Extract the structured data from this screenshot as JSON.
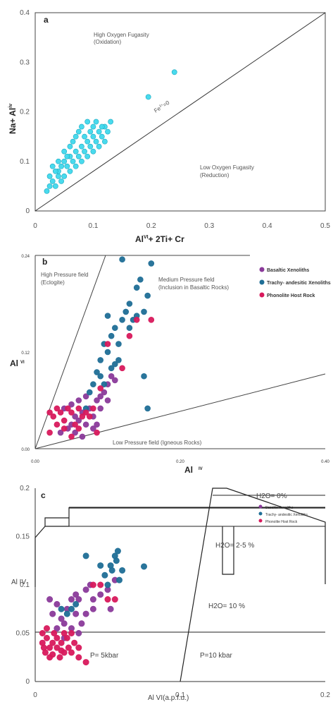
{
  "chart_data": [
    {
      "type": "scatter",
      "panel_label": "a",
      "xlabel": "Al",
      "xlabel_sup": "VI",
      "xlabel_rest": "+ 2Ti+ Cr",
      "ylabel": "Na+ Al",
      "ylabel_sup": "iv",
      "xlim": [
        0,
        0.5
      ],
      "ylim": [
        0,
        0.4
      ],
      "x_ticks": [
        "0",
        "0.1",
        "0.2",
        "0.3",
        "0.4",
        "0.5"
      ],
      "y_ticks": [
        "0",
        "0.1",
        "0.2",
        "0.3",
        "0.4"
      ],
      "line_label": "Fe",
      "line_label_sup": "3+",
      "line_label_rest": "=0",
      "annotations": [
        {
          "line1": "High Oxygen Fugasity",
          "line2": "(Oxidation)"
        },
        {
          "line1": "Low Oxygen Fugasity",
          "line2": "(Reduction)"
        }
      ],
      "color": "#3fd8ec",
      "series": [
        {
          "values": [
            [
              0.02,
              0.04
            ],
            [
              0.025,
              0.05
            ],
            [
              0.03,
              0.06
            ],
            [
              0.035,
              0.05
            ],
            [
              0.04,
              0.07
            ],
            [
              0.045,
              0.06
            ],
            [
              0.03,
              0.09
            ],
            [
              0.04,
              0.08
            ],
            [
              0.05,
              0.1
            ],
            [
              0.05,
              0.07
            ],
            [
              0.055,
              0.09
            ],
            [
              0.06,
              0.11
            ],
            [
              0.06,
              0.08
            ],
            [
              0.065,
              0.1
            ],
            [
              0.07,
              0.12
            ],
            [
              0.07,
              0.09
            ],
            [
              0.075,
              0.11
            ],
            [
              0.08,
              0.13
            ],
            [
              0.08,
              0.1
            ],
            [
              0.085,
              0.12
            ],
            [
              0.09,
              0.14
            ],
            [
              0.09,
              0.11
            ],
            [
              0.095,
              0.13
            ],
            [
              0.1,
              0.15
            ],
            [
              0.1,
              0.12
            ],
            [
              0.105,
              0.14
            ],
            [
              0.11,
              0.16
            ],
            [
              0.11,
              0.13
            ],
            [
              0.115,
              0.15
            ],
            [
              0.12,
              0.17
            ],
            [
              0.12,
              0.14
            ],
            [
              0.125,
              0.16
            ],
            [
              0.13,
              0.18
            ],
            [
              0.06,
              0.13
            ],
            [
              0.07,
              0.15
            ],
            [
              0.08,
              0.17
            ],
            [
              0.09,
              0.18
            ],
            [
              0.1,
              0.17
            ],
            [
              0.05,
              0.12
            ],
            [
              0.04,
              0.1
            ],
            [
              0.065,
              0.14
            ],
            [
              0.075,
              0.16
            ],
            [
              0.085,
              0.15
            ],
            [
              0.095,
              0.16
            ],
            [
              0.105,
              0.18
            ],
            [
              0.035,
              0.08
            ],
            [
              0.055,
              0.11
            ],
            [
              0.025,
              0.07
            ],
            [
              0.045,
              0.09
            ],
            [
              0.115,
              0.17
            ],
            [
              0.195,
              0.23
            ],
            [
              0.24,
              0.28
            ]
          ]
        }
      ]
    },
    {
      "type": "scatter",
      "panel_label": "b",
      "xlabel": "Al",
      "xlabel_sup": "IV",
      "ylabel": "Al",
      "ylabel_sup": "VI",
      "xlim": [
        0,
        0.4
      ],
      "ylim": [
        0,
        0.24
      ],
      "x_ticks": [
        "0.00",
        "0.20",
        "0.40"
      ],
      "y_ticks": [
        "0.00",
        "0.12",
        "0.24"
      ],
      "annotations": [
        {
          "line1": "High Pressure field",
          "line2": "(Eclogite)"
        },
        {
          "line1": "Medium Pressure field",
          "line2": "(Inclusion in Basaltic Rocks)"
        },
        {
          "line1": "Low Pressure field (Igneous Rocks)",
          "line2": ""
        }
      ],
      "legend_position": "top-right",
      "series": [
        {
          "name": "Basaltic Xenoliths",
          "color": "#8a3a9a",
          "values": [
            [
              0.035,
              0.02
            ],
            [
              0.045,
              0.025
            ],
            [
              0.05,
              0.03
            ],
            [
              0.055,
              0.02
            ],
            [
              0.06,
              0.035
            ],
            [
              0.065,
              0.045
            ],
            [
              0.07,
              0.03
            ],
            [
              0.075,
              0.05
            ],
            [
              0.08,
              0.04
            ],
            [
              0.085,
              0.06
            ],
            [
              0.09,
              0.05
            ],
            [
              0.095,
              0.07
            ],
            [
              0.1,
              0.08
            ],
            [
              0.105,
              0.09
            ],
            [
              0.11,
              0.085
            ],
            [
              0.085,
              0.03
            ],
            [
              0.04,
              0.05
            ],
            [
              0.05,
              0.055
            ],
            [
              0.06,
              0.06
            ],
            [
              0.07,
              0.065
            ],
            [
              0.08,
              0.025
            ],
            [
              0.065,
              0.015
            ],
            [
              0.055,
              0.04
            ],
            [
              0.09,
              0.065
            ],
            [
              0.1,
              0.06
            ]
          ]
        },
        {
          "name": "Trachy- andesitic Xenoliths",
          "color": "#1f6e96",
          "values": [
            [
              0.07,
              0.05
            ],
            [
              0.075,
              0.07
            ],
            [
              0.08,
              0.08
            ],
            [
              0.085,
              0.095
            ],
            [
              0.09,
              0.11
            ],
            [
              0.095,
              0.13
            ],
            [
              0.1,
              0.12
            ],
            [
              0.105,
              0.14
            ],
            [
              0.11,
              0.15
            ],
            [
              0.115,
              0.13
            ],
            [
              0.12,
              0.16
            ],
            [
              0.125,
              0.17
            ],
            [
              0.13,
              0.18
            ],
            [
              0.135,
              0.16
            ],
            [
              0.14,
              0.2
            ],
            [
              0.145,
              0.21
            ],
            [
              0.15,
              0.17
            ],
            [
              0.155,
              0.19
            ],
            [
              0.16,
              0.23
            ],
            [
              0.12,
              0.235
            ],
            [
              0.1,
              0.165
            ],
            [
              0.11,
              0.105
            ],
            [
              0.105,
              0.1
            ],
            [
              0.095,
              0.08
            ],
            [
              0.09,
              0.09
            ],
            [
              0.15,
              0.09
            ],
            [
              0.155,
              0.05
            ],
            [
              0.13,
              0.15
            ],
            [
              0.14,
              0.165
            ],
            [
              0.115,
              0.11
            ]
          ]
        },
        {
          "name": "Phonolite Host Rock",
          "color": "#d8195c",
          "values": [
            [
              0.02,
              0.02
            ],
            [
              0.025,
              0.04
            ],
            [
              0.03,
              0.05
            ],
            [
              0.035,
              0.045
            ],
            [
              0.04,
              0.035
            ],
            [
              0.045,
              0.05
            ],
            [
              0.05,
              0.045
            ],
            [
              0.055,
              0.03
            ],
            [
              0.06,
              0.05
            ],
            [
              0.065,
              0.04
            ],
            [
              0.07,
              0.045
            ],
            [
              0.075,
              0.04
            ],
            [
              0.03,
              0.03
            ],
            [
              0.04,
              0.025
            ],
            [
              0.02,
              0.045
            ],
            [
              0.06,
              0.025
            ],
            [
              0.08,
              0.05
            ],
            [
              0.09,
              0.075
            ],
            [
              0.1,
              0.13
            ],
            [
              0.12,
              0.1
            ],
            [
              0.14,
              0.16
            ],
            [
              0.16,
              0.16
            ],
            [
              0.13,
              0.14
            ],
            [
              0.085,
              0.02
            ],
            [
              0.05,
              0.015
            ]
          ]
        }
      ]
    },
    {
      "type": "scatter",
      "panel_label": "c",
      "xlabel": "Al VI(a.p.f.u.)",
      "ylabel": "Al IV",
      "xlim": [
        0,
        0.2
      ],
      "ylim": [
        0,
        0.2
      ],
      "x_ticks": [
        "0",
        "0.1",
        "0.2"
      ],
      "y_ticks": [
        "0",
        "0.05",
        "0.1",
        "0.15",
        "0.2"
      ],
      "annotations": [
        "H2O= 0%",
        "H2O= 2-5 %",
        "H2O= 10 %",
        "P= 5kbar",
        "P=10 kbar"
      ],
      "legend_position": "top-right",
      "series": [
        {
          "name": "Basaltic Xenoliths",
          "color": "#8a3a9a",
          "values": [
            [
              0.01,
              0.085
            ],
            [
              0.012,
              0.07
            ],
            [
              0.015,
              0.08
            ],
            [
              0.018,
              0.065
            ],
            [
              0.02,
              0.06
            ],
            [
              0.022,
              0.075
            ],
            [
              0.025,
              0.055
            ],
            [
              0.028,
              0.07
            ],
            [
              0.03,
              0.085
            ],
            [
              0.032,
              0.06
            ],
            [
              0.035,
              0.095
            ],
            [
              0.038,
              0.1
            ],
            [
              0.04,
              0.085
            ],
            [
              0.045,
              0.09
            ],
            [
              0.05,
              0.095
            ],
            [
              0.052,
              0.075
            ],
            [
              0.055,
              0.105
            ],
            [
              0.03,
              0.05
            ],
            [
              0.02,
              0.045
            ],
            [
              0.035,
              0.07
            ],
            [
              0.025,
              0.085
            ],
            [
              0.015,
              0.055
            ],
            [
              0.04,
              0.075
            ],
            [
              0.028,
              0.09
            ]
          ]
        },
        {
          "name": "Trachy- andesitic Xenoliths",
          "color": "#1f6e96",
          "values": [
            [
              0.018,
              0.075
            ],
            [
              0.022,
              0.07
            ],
            [
              0.025,
              0.075
            ],
            [
              0.035,
              0.13
            ],
            [
              0.045,
              0.12
            ],
            [
              0.048,
              0.11
            ],
            [
              0.05,
              0.1
            ],
            [
              0.052,
              0.12
            ],
            [
              0.053,
              0.115
            ],
            [
              0.055,
              0.13
            ],
            [
              0.056,
              0.125
            ],
            [
              0.057,
              0.135
            ],
            [
              0.058,
              0.105
            ],
            [
              0.06,
              0.115
            ],
            [
              0.075,
              0.119
            ],
            [
              0.028,
              0.08
            ]
          ]
        },
        {
          "name": "Phonolite Host Rock",
          "color": "#d8195c",
          "values": [
            [
              0.005,
              0.04
            ],
            [
              0.007,
              0.03
            ],
            [
              0.008,
              0.045
            ],
            [
              0.01,
              0.035
            ],
            [
              0.01,
              0.025
            ],
            [
              0.012,
              0.04
            ],
            [
              0.013,
              0.05
            ],
            [
              0.015,
              0.035
            ],
            [
              0.017,
              0.025
            ],
            [
              0.018,
              0.04
            ],
            [
              0.02,
              0.03
            ],
            [
              0.022,
              0.045
            ],
            [
              0.023,
              0.035
            ],
            [
              0.025,
              0.03
            ],
            [
              0.027,
              0.04
            ],
            [
              0.03,
              0.035
            ],
            [
              0.008,
              0.055
            ],
            [
              0.005,
              0.05
            ],
            [
              0.012,
              0.028
            ],
            [
              0.02,
              0.05
            ],
            [
              0.015,
              0.045
            ],
            [
              0.025,
              0.05
            ],
            [
              0.04,
              0.1
            ],
            [
              0.045,
              0.1
            ],
            [
              0.05,
              0.085
            ],
            [
              0.055,
              0.085
            ],
            [
              0.035,
              0.02
            ],
            [
              0.03,
              0.025
            ],
            [
              0.006,
              0.035
            ],
            [
              0.018,
              0.032
            ]
          ]
        }
      ]
    }
  ]
}
